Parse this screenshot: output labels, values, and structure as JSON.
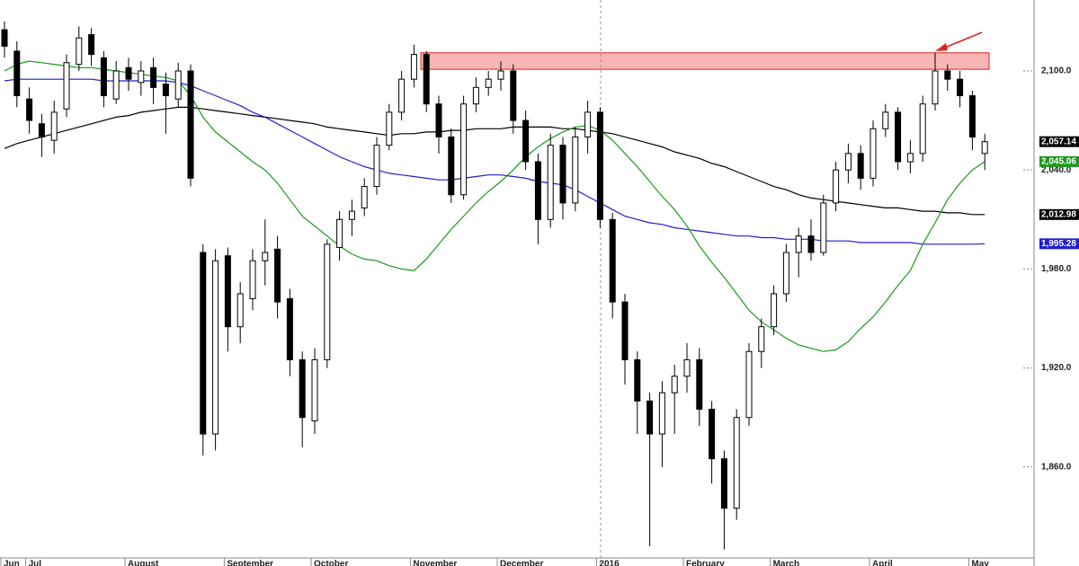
{
  "chart_data": {
    "type": "candlestick",
    "categories": [
      "Jun",
      null,
      "Jul",
      null,
      null,
      null,
      null,
      null,
      null,
      null,
      "August",
      null,
      null,
      null,
      null,
      null,
      null,
      null,
      "September",
      null,
      null,
      null,
      null,
      null,
      null,
      "October",
      null,
      null,
      null,
      null,
      null,
      null,
      null,
      "November",
      null,
      null,
      null,
      null,
      null,
      null,
      "December",
      null,
      null,
      null,
      null,
      null,
      null,
      null,
      "2016",
      null,
      null,
      null,
      null,
      null,
      null,
      "February",
      null,
      null,
      null,
      null,
      null,
      null,
      "March",
      null,
      null,
      null,
      null,
      null,
      null,
      null,
      "April",
      null,
      null,
      null,
      null,
      null,
      null,
      null,
      "May",
      null
    ],
    "open": [
      2125,
      2112,
      2083,
      2068,
      2058,
      2077,
      2104,
      2122,
      2108,
      2083,
      2102,
      2093,
      2102,
      2092,
      2083,
      2100,
      1990,
      1880,
      1988,
      1945,
      1962,
      1985,
      1992,
      1962,
      1925,
      1888,
      1925,
      1993,
      2010,
      2017,
      2030,
      2055,
      2075,
      2095,
      2110,
      2080,
      2060,
      2025,
      2080,
      2090,
      2095,
      2100,
      2070,
      2045,
      2010,
      2055,
      2020,
      2060,
      2075,
      2010,
      1960,
      1925,
      1900,
      1880,
      1905,
      1915,
      1925,
      1895,
      1865,
      1835,
      1890,
      1930,
      1945,
      1965,
      1990,
      2000,
      1990,
      2020,
      2040,
      2050,
      2035,
      2065,
      2075,
      2045,
      2050,
      2080,
      2100,
      2095,
      2085,
      2050
    ],
    "high": [
      2130,
      2118,
      2090,
      2074,
      2082,
      2110,
      2127,
      2126,
      2112,
      2106,
      2108,
      2106,
      2108,
      2099,
      2105,
      2104,
      1995,
      1992,
      1993,
      1972,
      1992,
      2010,
      2000,
      1968,
      1930,
      1932,
      1998,
      2015,
      2022,
      2035,
      2060,
      2080,
      2100,
      2116,
      2112,
      2085,
      2065,
      2085,
      2096,
      2100,
      2106,
      2104,
      2076,
      2050,
      2062,
      2060,
      2066,
      2082,
      2078,
      2014,
      1965,
      1930,
      1905,
      1912,
      1922,
      1935,
      1932,
      1900,
      1870,
      1895,
      1935,
      1950,
      1970,
      1995,
      2005,
      2010,
      2025,
      2045,
      2056,
      2055,
      2070,
      2080,
      2078,
      2058,
      2085,
      2111,
      2104,
      2100,
      2088,
      2062
    ],
    "low": [
      2108,
      2078,
      2062,
      2048,
      2050,
      2072,
      2100,
      2103,
      2078,
      2080,
      2088,
      2085,
      2080,
      2062,
      2078,
      2030,
      1867,
      1870,
      1930,
      1935,
      1955,
      1970,
      1950,
      1915,
      1872,
      1880,
      1920,
      1985,
      2000,
      2012,
      2025,
      2052,
      2070,
      2090,
      2075,
      2050,
      2020,
      2022,
      2075,
      2085,
      2088,
      2062,
      2040,
      1995,
      2005,
      2010,
      2015,
      2050,
      2005,
      1950,
      1910,
      1880,
      1812,
      1860,
      1880,
      1905,
      1885,
      1850,
      1810,
      1828,
      1885,
      1920,
      1940,
      1960,
      1975,
      1985,
      1988,
      2015,
      2032,
      2028,
      2030,
      2060,
      2040,
      2038,
      2045,
      2076,
      2088,
      2078,
      2052,
      2040
    ],
    "close": [
      2115,
      2085,
      2070,
      2060,
      2075,
      2105,
      2120,
      2110,
      2085,
      2100,
      2095,
      2100,
      2090,
      2085,
      2100,
      2035,
      1880,
      1985,
      1945,
      1965,
      1985,
      1990,
      1960,
      1925,
      1890,
      1925,
      1995,
      2010,
      2015,
      2030,
      2055,
      2075,
      2095,
      2110,
      2080,
      2060,
      2025,
      2080,
      2090,
      2095,
      2100,
      2070,
      2045,
      2010,
      2055,
      2020,
      2060,
      2075,
      2010,
      1960,
      1925,
      1900,
      1880,
      1905,
      1915,
      1925,
      1895,
      1865,
      1835,
      1890,
      1930,
      1945,
      1965,
      1990,
      2000,
      1990,
      2020,
      2040,
      2050,
      2035,
      2065,
      2075,
      2045,
      2050,
      2080,
      2100,
      2095,
      2085,
      2060,
      2057.14
    ],
    "close_label": {
      "value": 2057.14,
      "label": "2,057.14"
    },
    "lines": [
      {
        "color": "#000000",
        "values": [
          2053,
          2056,
          2058,
          2060,
          2062,
          2064,
          2066,
          2068,
          2070,
          2072,
          2073,
          2075,
          2076,
          2077,
          2078,
          2078,
          2077,
          2076,
          2075,
          2074,
          2073,
          2072,
          2071,
          2070,
          2069,
          2068,
          2066,
          2065,
          2064,
          2063,
          2062,
          2061,
          2062,
          2062,
          2063,
          2063,
          2064,
          2064,
          2065,
          2065,
          2065,
          2066,
          2066,
          2066,
          2066,
          2065,
          2065,
          2064,
          2063,
          2062,
          2060,
          2058,
          2056,
          2054,
          2051,
          2049,
          2047,
          2044,
          2042,
          2039,
          2036,
          2033,
          2030,
          2028,
          2025,
          2023,
          2022,
          2021,
          2020,
          2019,
          2018,
          2017,
          2017,
          2016,
          2015,
          2015,
          2014,
          2014,
          2013,
          2012.98
        ],
        "end_label": {
          "value": 2012.98,
          "label": "2,012.98"
        }
      },
      {
        "color": "#1f1fd0",
        "values": [
          2094,
          2095,
          2095,
          2095,
          2095,
          2095,
          2095,
          2095,
          2094,
          2094,
          2094,
          2094,
          2094,
          2094,
          2093,
          2091,
          2088,
          2085,
          2082,
          2079,
          2075,
          2072,
          2068,
          2064,
          2060,
          2056,
          2052,
          2048,
          2045,
          2042,
          2040,
          2038,
          2037,
          2036,
          2035,
          2034,
          2034,
          2035,
          2036,
          2037,
          2037,
          2036,
          2035,
          2033,
          2032,
          2031,
          2028,
          2024,
          2020,
          2016,
          2012,
          2010,
          2008,
          2007,
          2005,
          2004,
          2003,
          2002,
          2001,
          2000,
          2000,
          1999,
          1999,
          1998,
          1998,
          1998,
          1997,
          1997,
          1997,
          1996,
          1996,
          1996,
          1996,
          1996,
          1995,
          1995,
          1995,
          1995,
          1995,
          1995.28
        ],
        "end_label": {
          "value": 1995.28,
          "label": "1,995.28"
        }
      },
      {
        "color": "#1a9a1a",
        "values": [
          2100,
          2104,
          2106,
          2105,
          2104,
          2103,
          2102,
          2102,
          2101,
          2100,
          2099,
          2098,
          2097,
          2096,
          2094,
          2085,
          2072,
          2063,
          2057,
          2051,
          2045,
          2040,
          2032,
          2022,
          2012,
          2006,
          2000,
          1994,
          1989,
          1986,
          1985,
          1982,
          1980,
          1979,
          1986,
          1995,
          2004,
          2012,
          2020,
          2027,
          2033,
          2040,
          2048,
          2054,
          2059,
          2063,
          2066,
          2067,
          2064,
          2058,
          2050,
          2042,
          2033,
          2024,
          2016,
          2006,
          1994,
          1984,
          1975,
          1965,
          1955,
          1948,
          1943,
          1938,
          1934,
          1932,
          1930,
          1931,
          1936,
          1944,
          1951,
          1960,
          1970,
          1979,
          1995,
          2008,
          2022,
          2032,
          2040,
          2045.06
        ],
        "end_label": {
          "value": 2045.06,
          "label": "2,045.06"
        }
      }
    ],
    "band": [
      2101,
      2111
    ],
    "ylim": [
      1800,
      2143
    ],
    "yticks": [
      {
        "value": 1860,
        "label": "1,860.0"
      },
      {
        "value": 1920,
        "label": "1,920.0"
      },
      {
        "value": 1980,
        "label": "1,980.0"
      },
      {
        "value": 2040,
        "label": "2,040.0"
      },
      {
        "value": 2100,
        "label": "2,100.0"
      }
    ]
  }
}
